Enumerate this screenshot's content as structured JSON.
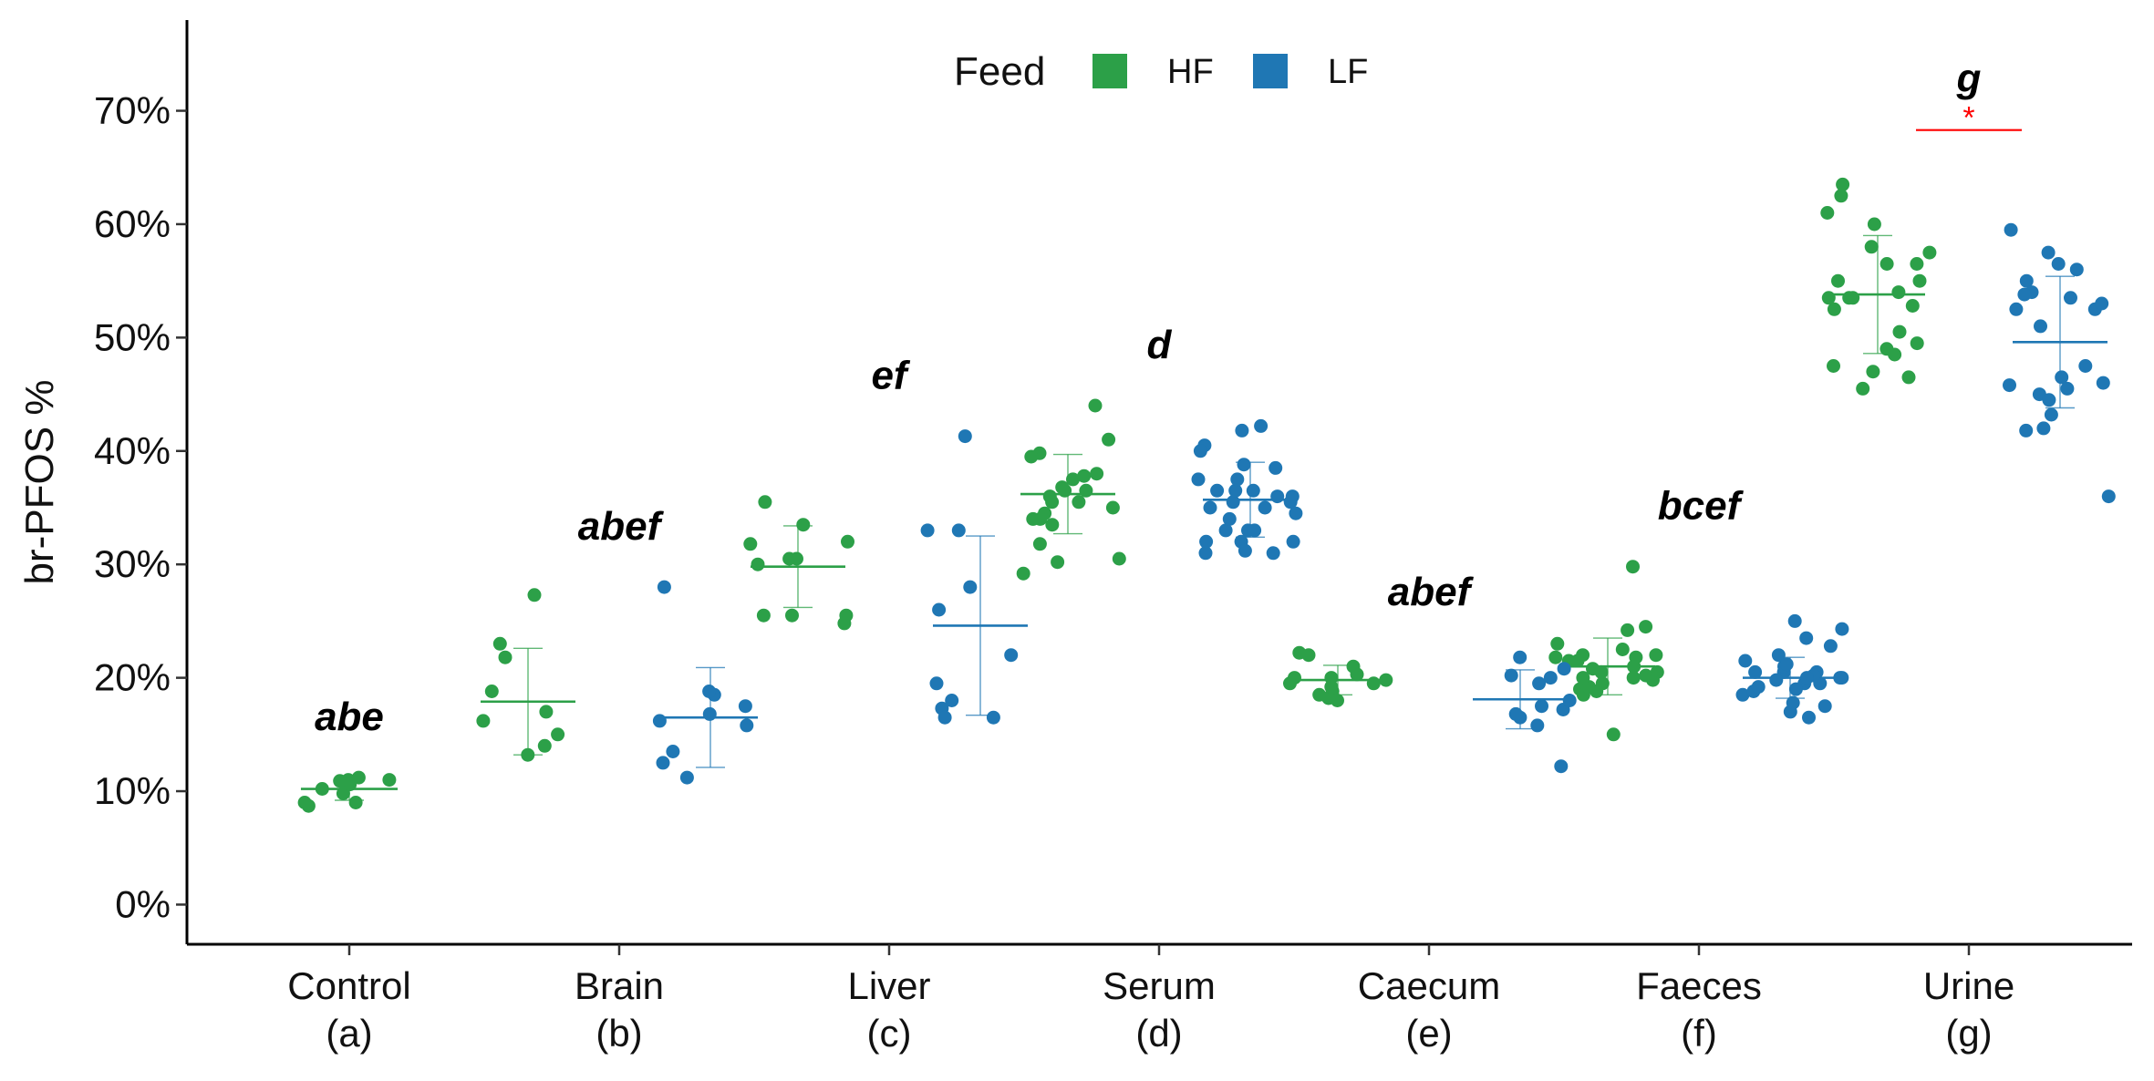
{
  "chart_data": {
    "type": "scatter",
    "title": "",
    "xlabel": "",
    "ylabel": "br-PFOS %",
    "ylim": [
      -3.5,
      78
    ],
    "yticks": [
      0,
      10,
      20,
      30,
      40,
      50,
      60,
      70
    ],
    "ytick_labels": [
      "0%",
      "10%",
      "20%",
      "30%",
      "40%",
      "50%",
      "60%",
      "70%"
    ],
    "grid": false,
    "legend": {
      "position": "top-center",
      "title": "Feed",
      "entries": [
        {
          "name": "HF",
          "color": "#2ca048"
        },
        {
          "name": "LF",
          "color": "#1f77b4"
        }
      ]
    },
    "categories": [
      {
        "name": "Control",
        "code": "(a)",
        "letters": "abe"
      },
      {
        "name": "Brain",
        "code": "(b)",
        "letters": "abef"
      },
      {
        "name": "Liver",
        "code": "(c)",
        "letters": "ef"
      },
      {
        "name": "Serum",
        "code": "(d)",
        "letters": "d"
      },
      {
        "name": "Caecum",
        "code": "(e)",
        "letters": "abef"
      },
      {
        "name": "Faeces",
        "code": "(f)",
        "letters": "bcef"
      },
      {
        "name": "Urine",
        "code": "(g)",
        "letters": "g"
      }
    ],
    "series": [
      {
        "name": "HF",
        "color": "#2ca048",
        "groups": [
          {
            "category": "Control",
            "mean": 10.2,
            "sd": 1.0,
            "points": [
              11.0,
              9.0,
              8.7,
              10.2,
              9.8,
              10.6,
              9.0,
              11.0,
              11.2,
              10.9
            ]
          },
          {
            "category": "Brain",
            "mean": 17.9,
            "sd": 4.7,
            "points": [
              21.8,
              15.0,
              14.0,
              16.2,
              13.2,
              23.0,
              17.0,
              18.8,
              27.3
            ]
          },
          {
            "category": "Liver",
            "mean": 29.8,
            "sd": 3.6,
            "points": [
              30.5,
              25.5,
              31.8,
              24.8,
              32.0,
              30.0,
              25.5,
              25.5,
              35.5,
              30.5,
              33.5
            ]
          },
          {
            "category": "Serum",
            "mean": 36.2,
            "sd": 3.5,
            "points": [
              36.5,
              34.5,
              34.0,
              30.5,
              36.8,
              39.8,
              37.5,
              36.0,
              39.5,
              38.0,
              33.5,
              35.5,
              29.2,
              35.0,
              34.0,
              41.0,
              36.5,
              31.8,
              35.5,
              30.2,
              44.0,
              37.8
            ]
          },
          {
            "category": "Caecum",
            "mean": 19.8,
            "sd": 1.3,
            "points": [
              22.2,
              22.0,
              18.8,
              20.0,
              19.5,
              18.2,
              20.3,
              21.0,
              19.8,
              18.5,
              19.2,
              18.0,
              20.0,
              19.5
            ]
          },
          {
            "category": "Faeces",
            "mean": 21.0,
            "sd": 2.5,
            "points": [
              19.5,
              20.5,
              22.0,
              19.0,
              20.0,
              21.5,
              18.5,
              21.8,
              24.5,
              20.5,
              19.8,
              20.2,
              21.0,
              22.5,
              15.0,
              23.0,
              19.2,
              20.8,
              21.5,
              18.8,
              24.2,
              29.8,
              20.0,
              22.0,
              21.8
            ]
          },
          {
            "category": "Urine",
            "mean": 53.8,
            "sd": 5.2,
            "points": [
              45.5,
              49.0,
              58.0,
              52.5,
              57.5,
              47.0,
              49.5,
              56.5,
              60.0,
              55.0,
              46.5,
              55.0,
              53.5,
              61.0,
              62.5,
              50.5,
              54.0,
              48.5,
              56.5,
              53.5,
              52.8,
              63.5,
              53.5,
              47.5
            ]
          }
        ]
      },
      {
        "name": "LF",
        "color": "#1f77b4",
        "groups": [
          {
            "category": "Brain",
            "mean": 16.5,
            "sd": 4.4,
            "points": [
              16.2,
              18.5,
              17.5,
              15.8,
              13.5,
              16.8,
              12.5,
              11.2,
              18.8,
              28.0
            ]
          },
          {
            "category": "Liver",
            "mean": 24.6,
            "sd": 7.9,
            "points": [
              41.3,
              18.0,
              33.0,
              22.0,
              17.3,
              16.5,
              33.0,
              16.5,
              19.5,
              28.0,
              26.0
            ]
          },
          {
            "category": "Serum",
            "mean": 35.7,
            "sd": 3.3,
            "points": [
              33.0,
              32.0,
              37.5,
              36.0,
              31.2,
              38.5,
              35.5,
              34.5,
              31.0,
              35.0,
              33.0,
              36.5,
              31.0,
              35.5,
              32.0,
              40.5,
              36.5,
              34.0,
              40.0,
              42.2,
              38.8,
              37.5,
              33.0,
              32.0,
              36.5,
              41.8,
              35.0,
              36.0
            ]
          },
          {
            "category": "Caecum",
            "mean": 18.1,
            "sd": 2.6,
            "points": [
              15.8,
              16.5,
              17.2,
              19.5,
              16.8,
              18.0,
              12.2,
              20.2,
              21.8,
              17.5,
              20.0,
              20.8
            ]
          },
          {
            "category": "Faeces",
            "mean": 20.0,
            "sd": 1.8,
            "points": [
              25.0,
              20.0,
              19.5,
              17.5,
              20.5,
              21.5,
              20.0,
              19.0,
              23.5,
              22.0,
              20.5,
              19.5,
              17.0,
              21.0,
              22.8,
              20.2,
              18.5,
              19.8,
              21.2,
              24.3,
              20.0,
              18.8,
              16.5,
              20.5,
              19.2,
              17.8
            ]
          },
          {
            "category": "Urine",
            "mean": 49.6,
            "sd": 5.8,
            "points": [
              51.0,
              45.8,
              36.0,
              46.5,
              59.5,
              57.5,
              55.0,
              56.0,
              54.0,
              47.5,
              45.0,
              46.0,
              53.5,
              44.5,
              52.5,
              41.8,
              42.0,
              43.2,
              53.0,
              45.5,
              52.5,
              53.8,
              56.5
            ]
          }
        ]
      }
    ],
    "annotations": [
      {
        "category": "Urine",
        "text": "*",
        "color": "#ff0000",
        "y": 68.3
      }
    ]
  }
}
